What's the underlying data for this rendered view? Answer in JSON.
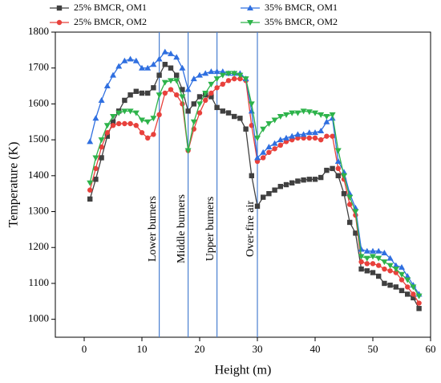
{
  "chart_data": {
    "type": "line",
    "xlabel": "Height (m)",
    "ylabel": "Temperature (K)",
    "x": [
      1,
      2,
      3,
      4,
      5,
      6,
      7,
      8,
      9,
      10,
      11,
      12,
      13,
      14,
      15,
      16,
      17,
      18,
      19,
      20,
      21,
      22,
      23,
      24,
      25,
      26,
      27,
      28,
      29,
      30,
      31,
      32,
      33,
      34,
      35,
      36,
      37,
      38,
      39,
      40,
      41,
      42,
      43,
      44,
      45,
      46,
      47,
      48,
      49,
      50,
      51,
      52,
      53,
      54,
      55,
      56,
      57,
      58
    ],
    "series": [
      {
        "name": "25% BMCR, OM1",
        "color": "#404040",
        "marker": "square",
        "values": [
          1335,
          1390,
          1450,
          1510,
          1550,
          1580,
          1610,
          1625,
          1635,
          1630,
          1630,
          1645,
          1680,
          1710,
          1700,
          1680,
          1640,
          1580,
          1600,
          1620,
          1625,
          1620,
          1590,
          1580,
          1575,
          1565,
          1560,
          1530,
          1400,
          1315,
          1340,
          1350,
          1360,
          1370,
          1375,
          1380,
          1385,
          1388,
          1390,
          1390,
          1395,
          1415,
          1420,
          1400,
          1350,
          1270,
          1240,
          1140,
          1135,
          1130,
          1120,
          1100,
          1095,
          1090,
          1080,
          1070,
          1060,
          1030
        ]
      },
      {
        "name": "25% BMCR, OM2",
        "color": "#e8413c",
        "marker": "circle",
        "values": [
          1360,
          1420,
          1480,
          1520,
          1540,
          1545,
          1545,
          1545,
          1540,
          1520,
          1505,
          1515,
          1570,
          1630,
          1640,
          1625,
          1600,
          1470,
          1530,
          1575,
          1610,
          1630,
          1645,
          1655,
          1665,
          1670,
          1670,
          1665,
          1540,
          1440,
          1450,
          1465,
          1475,
          1485,
          1495,
          1500,
          1505,
          1505,
          1505,
          1505,
          1500,
          1510,
          1510,
          1420,
          1390,
          1320,
          1290,
          1160,
          1155,
          1155,
          1150,
          1140,
          1135,
          1130,
          1110,
          1090,
          1070,
          1045
        ]
      },
      {
        "name": "35% BMCR, OM1",
        "color": "#2f6fe0",
        "marker": "triangle-up",
        "values": [
          1495,
          1560,
          1610,
          1650,
          1680,
          1705,
          1720,
          1725,
          1720,
          1700,
          1700,
          1710,
          1725,
          1745,
          1740,
          1730,
          1700,
          1640,
          1670,
          1680,
          1685,
          1690,
          1690,
          1690,
          1685,
          1685,
          1685,
          1670,
          1580,
          1450,
          1465,
          1480,
          1490,
          1500,
          1505,
          1510,
          1515,
          1515,
          1520,
          1520,
          1525,
          1550,
          1560,
          1440,
          1410,
          1350,
          1310,
          1195,
          1190,
          1190,
          1190,
          1185,
          1170,
          1150,
          1145,
          1120,
          1095,
          1070
        ]
      },
      {
        "name": "35% BMCR, OM2",
        "color": "#2db34a",
        "marker": "triangle-down",
        "values": [
          1380,
          1450,
          1500,
          1540,
          1565,
          1575,
          1580,
          1580,
          1575,
          1555,
          1550,
          1560,
          1625,
          1660,
          1665,
          1665,
          1620,
          1470,
          1550,
          1600,
          1630,
          1655,
          1670,
          1680,
          1685,
          1685,
          1680,
          1670,
          1600,
          1505,
          1530,
          1545,
          1555,
          1565,
          1570,
          1575,
          1575,
          1580,
          1578,
          1575,
          1570,
          1565,
          1570,
          1470,
          1400,
          1340,
          1300,
          1175,
          1170,
          1175,
          1170,
          1160,
          1150,
          1140,
          1125,
          1110,
          1090,
          1065
        ]
      }
    ],
    "annotations": [
      {
        "text": "Lower burners",
        "x": 13
      },
      {
        "text": "Middle burners",
        "x": 18
      },
      {
        "text": "Upper burners",
        "x": 23
      },
      {
        "text": "Over-fire air",
        "x": 30
      }
    ],
    "annotation_color": "#4a7fd0",
    "xlim": [
      -5,
      60
    ],
    "xticks": [
      0,
      10,
      20,
      30,
      40,
      50,
      60
    ],
    "ylim": [
      950,
      1800
    ],
    "yticks": [
      1000,
      1100,
      1200,
      1300,
      1400,
      1500,
      1600,
      1700,
      1800
    ]
  }
}
